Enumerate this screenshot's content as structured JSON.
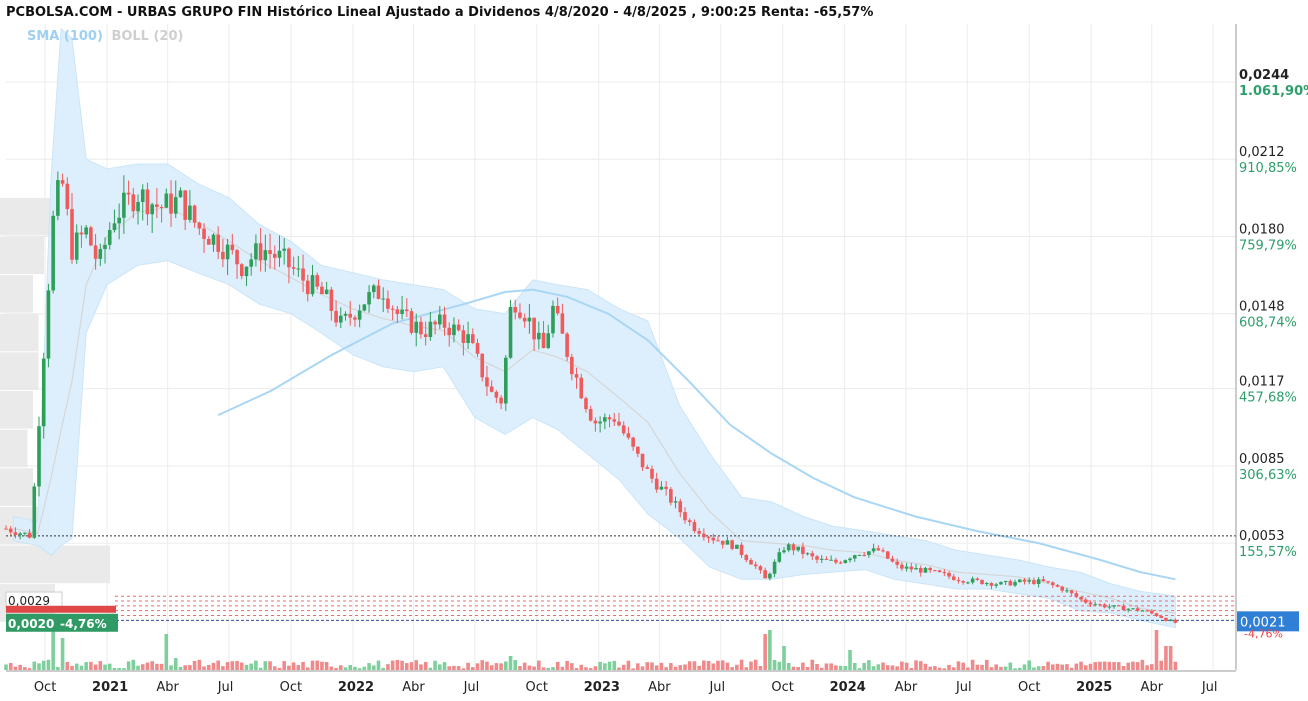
{
  "title": "PCBOLSA.COM - URBAS GRUPO FIN Histórico Lineal Ajustado a Dividenos 4/8/2020 - 4/8/2025 , 9:00:25 Renta: -65,57%",
  "legend": {
    "sma": "SMA (100)",
    "boll": "BOLL (20)"
  },
  "colors": {
    "up": "#2e9e5b",
    "down": "#ef5a5a",
    "sma": "#a9d6f5",
    "band": "#dceffc",
    "grid": "#ececec",
    "last_price_bg": "#2f7fd6",
    "badge_bg": "#2f9a64"
  },
  "chart_data": {
    "type": "candlestick",
    "title": "PCBOLSA.COM - URBAS GRUPO FIN Histórico Lineal Ajustado a Dividenos 4/8/2020 - 4/8/2025 , 9:00:25 Renta: -65,57%",
    "x_range": [
      "2020-08-04",
      "2025-08-04"
    ],
    "y_range": [
      0.0017,
      0.0268
    ],
    "x_ticks": [
      {
        "date": "2020-10-01",
        "label": "Oct",
        "bold": false
      },
      {
        "date": "2021-01-01",
        "label": "2021",
        "bold": true
      },
      {
        "date": "2021-04-01",
        "label": "Abr",
        "bold": false
      },
      {
        "date": "2021-07-01",
        "label": "Jul",
        "bold": false
      },
      {
        "date": "2021-10-01",
        "label": "Oct",
        "bold": false
      },
      {
        "date": "2022-01-01",
        "label": "2022",
        "bold": true
      },
      {
        "date": "2022-04-01",
        "label": "Abr",
        "bold": false
      },
      {
        "date": "2022-07-01",
        "label": "Jul",
        "bold": false
      },
      {
        "date": "2022-10-01",
        "label": "Oct",
        "bold": false
      },
      {
        "date": "2023-01-01",
        "label": "2023",
        "bold": true
      },
      {
        "date": "2023-04-01",
        "label": "Abr",
        "bold": false
      },
      {
        "date": "2023-07-01",
        "label": "Jul",
        "bold": false
      },
      {
        "date": "2023-10-01",
        "label": "Oct",
        "bold": false
      },
      {
        "date": "2024-01-01",
        "label": "2024",
        "bold": true
      },
      {
        "date": "2024-04-01",
        "label": "Abr",
        "bold": false
      },
      {
        "date": "2024-07-01",
        "label": "Jul",
        "bold": false
      },
      {
        "date": "2024-10-01",
        "label": "Oct",
        "bold": false
      },
      {
        "date": "2025-01-01",
        "label": "2025",
        "bold": true
      },
      {
        "date": "2025-04-01",
        "label": "Abr",
        "bold": false
      },
      {
        "date": "2025-07-01",
        "label": "Jul",
        "bold": false
      }
    ],
    "y_ticks": [
      {
        "value": 0.0244,
        "label": "0,0244",
        "pct": "1.061,90%",
        "bold": true
      },
      {
        "value": 0.0212,
        "label": "0,0212",
        "pct": "910,85%",
        "bold": false
      },
      {
        "value": 0.018,
        "label": "0,0180",
        "pct": "759,79%",
        "bold": false
      },
      {
        "value": 0.0148,
        "label": "0,0148",
        "pct": "608,74%",
        "bold": false
      },
      {
        "value": 0.0117,
        "label": "0,0117",
        "pct": "457,68%",
        "bold": false
      },
      {
        "value": 0.0085,
        "label": "0,0085",
        "pct": "306,63%",
        "bold": false
      },
      {
        "value": 0.0053,
        "label": "0,0053",
        "pct": "155,57%",
        "bold": false
      }
    ],
    "reference_line": 0.0056,
    "hidden_axis_pct": "-4,76%",
    "last_price": {
      "value": 0.0021,
      "label": "0,0021"
    },
    "badge_prev": {
      "value": 0.0029,
      "label": "0,0029"
    },
    "badge_current": {
      "value": 0.002,
      "label": "0,0020",
      "change": "-4,76%"
    },
    "close_path": [
      [
        "2020-08-04",
        0.0059
      ],
      [
        "2020-09-10",
        0.0056
      ],
      [
        "2020-10-12",
        0.0185
      ],
      [
        "2020-10-25",
        0.0205
      ],
      [
        "2020-11-10",
        0.0175
      ],
      [
        "2020-12-01",
        0.0182
      ],
      [
        "2020-12-20",
        0.0168
      ],
      [
        "2021-01-10",
        0.0188
      ],
      [
        "2021-02-15",
        0.0198
      ],
      [
        "2021-03-20",
        0.0192
      ],
      [
        "2021-04-20",
        0.0195
      ],
      [
        "2021-05-15",
        0.0184
      ],
      [
        "2021-06-15",
        0.0178
      ],
      [
        "2021-07-20",
        0.0168
      ],
      [
        "2021-08-20",
        0.0175
      ],
      [
        "2021-09-20",
        0.017
      ],
      [
        "2021-10-20",
        0.0162
      ],
      [
        "2021-11-20",
        0.0155
      ],
      [
        "2021-12-15",
        0.0143
      ],
      [
        "2022-01-15",
        0.0153
      ],
      [
        "2022-02-15",
        0.0158
      ],
      [
        "2022-03-10",
        0.0147
      ],
      [
        "2022-04-15",
        0.0141
      ],
      [
        "2022-05-15",
        0.0144
      ],
      [
        "2022-06-20",
        0.0138
      ],
      [
        "2022-07-10",
        0.0125
      ],
      [
        "2022-07-25",
        0.0115
      ],
      [
        "2022-08-10",
        0.0112
      ],
      [
        "2022-08-25",
        0.0155
      ],
      [
        "2022-09-15",
        0.0148
      ],
      [
        "2022-10-10",
        0.0132
      ],
      [
        "2022-10-25",
        0.015
      ],
      [
        "2022-11-20",
        0.0128
      ],
      [
        "2022-12-10",
        0.0113
      ],
      [
        "2022-12-25",
        0.0103
      ],
      [
        "2023-01-25",
        0.0105
      ],
      [
        "2023-02-20",
        0.0092
      ],
      [
        "2023-03-20",
        0.008
      ],
      [
        "2023-04-15",
        0.0072
      ],
      [
        "2023-05-20",
        0.006
      ],
      [
        "2023-06-20",
        0.0055
      ],
      [
        "2023-07-20",
        0.0052
      ],
      [
        "2023-08-20",
        0.0044
      ],
      [
        "2023-09-05",
        0.0038
      ],
      [
        "2023-09-20",
        0.0045
      ],
      [
        "2023-10-05",
        0.0052
      ],
      [
        "2023-10-25",
        0.005
      ],
      [
        "2023-11-20",
        0.0046
      ],
      [
        "2023-12-20",
        0.0045
      ],
      [
        "2024-01-20",
        0.0049
      ],
      [
        "2024-02-20",
        0.005
      ],
      [
        "2024-03-20",
        0.0043
      ],
      [
        "2024-04-20",
        0.0042
      ],
      [
        "2024-05-25",
        0.004
      ],
      [
        "2024-06-20",
        0.0038
      ],
      [
        "2024-07-20",
        0.0037
      ],
      [
        "2024-08-20",
        0.0036
      ],
      [
        "2024-09-20",
        0.0037
      ],
      [
        "2024-10-20",
        0.0037
      ],
      [
        "2024-11-20",
        0.0034
      ],
      [
        "2024-12-20",
        0.0029
      ],
      [
        "2025-01-20",
        0.0027
      ],
      [
        "2025-02-20",
        0.0026
      ],
      [
        "2025-03-20",
        0.0025
      ],
      [
        "2025-04-10",
        0.0023
      ],
      [
        "2025-04-25",
        0.0021
      ],
      [
        "2025-05-06",
        0.002
      ]
    ],
    "sma_100": [
      [
        "2021-06-15",
        0.0106
      ],
      [
        "2021-09-01",
        0.0116
      ],
      [
        "2021-12-01",
        0.0131
      ],
      [
        "2022-03-01",
        0.0144
      ],
      [
        "2022-06-15",
        0.0152
      ],
      [
        "2022-08-15",
        0.0157
      ],
      [
        "2022-09-25",
        0.0158
      ],
      [
        "2022-11-15",
        0.0155
      ],
      [
        "2023-01-15",
        0.0148
      ],
      [
        "2023-03-15",
        0.0137
      ],
      [
        "2023-05-15",
        0.012
      ],
      [
        "2023-07-15",
        0.0102
      ],
      [
        "2023-09-15",
        0.009
      ],
      [
        "2023-11-15",
        0.008
      ],
      [
        "2024-01-15",
        0.0072
      ],
      [
        "2024-04-15",
        0.0064
      ],
      [
        "2024-07-15",
        0.0058
      ],
      [
        "2024-10-15",
        0.0053
      ],
      [
        "2025-01-15",
        0.0046
      ],
      [
        "2025-03-15",
        0.0041
      ],
      [
        "2025-05-06",
        0.0038
      ]
    ],
    "bollinger_20": {
      "dates": [
        "2020-08-15",
        "2020-09-20",
        "2020-10-10",
        "2020-10-25",
        "2020-11-10",
        "2020-12-01",
        "2021-01-01",
        "2021-02-15",
        "2021-04-01",
        "2021-05-15",
        "2021-07-01",
        "2021-08-15",
        "2021-10-01",
        "2021-11-15",
        "2022-01-01",
        "2022-02-15",
        "2022-04-01",
        "2022-05-15",
        "2022-07-01",
        "2022-08-15",
        "2022-09-25",
        "2022-11-01",
        "2022-12-15",
        "2023-02-01",
        "2023-03-15",
        "2023-05-01",
        "2023-06-15",
        "2023-08-01",
        "2023-09-15",
        "2023-11-01",
        "2023-12-15",
        "2024-02-01",
        "2024-03-15",
        "2024-05-01",
        "2024-06-15",
        "2024-08-01",
        "2024-09-15",
        "2024-11-01",
        "2024-12-15",
        "2025-02-01",
        "2025-03-15",
        "2025-05-06"
      ],
      "upper": [
        0.0064,
        0.0062,
        0.0205,
        0.0266,
        0.0262,
        0.0212,
        0.0208,
        0.021,
        0.021,
        0.0202,
        0.0196,
        0.0185,
        0.0178,
        0.0168,
        0.0165,
        0.0162,
        0.016,
        0.0158,
        0.015,
        0.0148,
        0.0162,
        0.016,
        0.0158,
        0.015,
        0.0145,
        0.011,
        0.009,
        0.0072,
        0.007,
        0.0064,
        0.006,
        0.0058,
        0.0056,
        0.0054,
        0.005,
        0.0048,
        0.0046,
        0.0043,
        0.0041,
        0.0036,
        0.0033,
        0.0031
      ],
      "lower": [
        0.0054,
        0.0052,
        0.0048,
        0.0052,
        0.0055,
        0.014,
        0.016,
        0.0168,
        0.017,
        0.0165,
        0.016,
        0.0152,
        0.0148,
        0.014,
        0.0131,
        0.0126,
        0.0124,
        0.0126,
        0.0105,
        0.0098,
        0.0105,
        0.01,
        0.009,
        0.0079,
        0.0065,
        0.0055,
        0.0043,
        0.0038,
        0.0038,
        0.004,
        0.0041,
        0.0042,
        0.0038,
        0.0036,
        0.0034,
        0.0034,
        0.0032,
        0.003,
        0.0025,
        0.0024,
        0.0021,
        0.0018
      ],
      "middle": [
        0.0059,
        0.0057,
        0.008,
        0.01,
        0.012,
        0.016,
        0.018,
        0.019,
        0.0192,
        0.0186,
        0.0178,
        0.017,
        0.0163,
        0.0156,
        0.015,
        0.0146,
        0.0143,
        0.0141,
        0.013,
        0.0124,
        0.0133,
        0.013,
        0.0124,
        0.0113,
        0.0103,
        0.0082,
        0.0066,
        0.0054,
        0.0053,
        0.0052,
        0.005,
        0.0049,
        0.0046,
        0.0044,
        0.0041,
        0.004,
        0.0039,
        0.0036,
        0.0033,
        0.003,
        0.0026,
        0.0024
      ]
    },
    "volume_pattern": [
      [
        "2020-10-12",
        1.0
      ],
      [
        "2020-10-25",
        0.8
      ],
      [
        "2021-04-01",
        0.9
      ],
      [
        "2021-04-15",
        0.3
      ],
      [
        "2022-08-25",
        0.35
      ],
      [
        "2023-09-05",
        0.9
      ],
      [
        "2023-09-10",
        1.0
      ],
      [
        "2023-10-05",
        0.6
      ],
      [
        "2024-01-10",
        0.5
      ],
      [
        "2025-04-10",
        1.0
      ],
      [
        "2025-04-25",
        0.6
      ]
    ],
    "volume_profile": [
      {
        "from": 0.018,
        "to": 0.0196,
        "width": 1.0
      },
      {
        "from": 0.0164,
        "to": 0.018,
        "width": 0.4
      },
      {
        "from": 0.0148,
        "to": 0.0164,
        "width": 0.3
      },
      {
        "from": 0.0132,
        "to": 0.0148,
        "width": 0.35
      },
      {
        "from": 0.0116,
        "to": 0.0132,
        "width": 0.35
      },
      {
        "from": 0.01,
        "to": 0.0116,
        "width": 0.3
      },
      {
        "from": 0.0084,
        "to": 0.01,
        "width": 0.25
      },
      {
        "from": 0.0068,
        "to": 0.0084,
        "width": 0.3
      },
      {
        "from": 0.0052,
        "to": 0.0068,
        "width": 0.45
      },
      {
        "from": 0.0036,
        "to": 0.0052,
        "width": 1.0
      },
      {
        "from": 0.002,
        "to": 0.0036,
        "width": 0.5
      }
    ]
  }
}
